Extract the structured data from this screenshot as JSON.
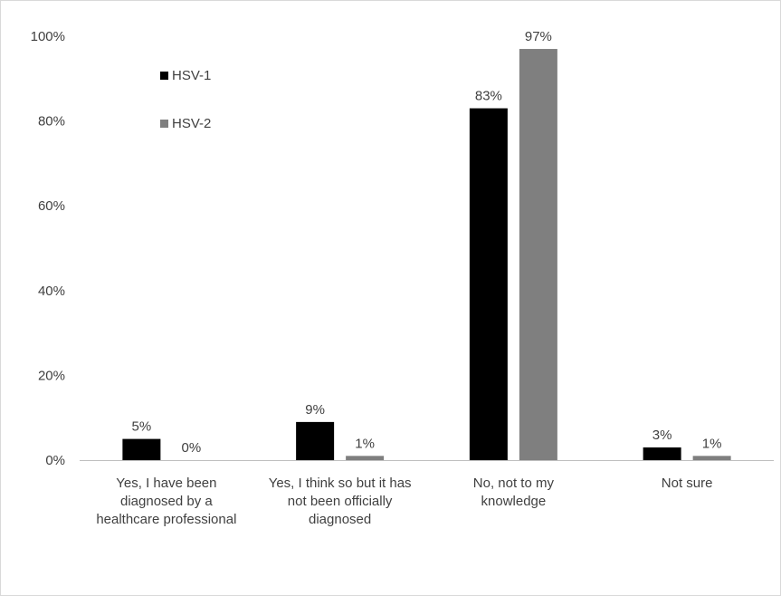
{
  "chart_data": {
    "type": "bar",
    "categories": [
      [
        "Yes, I have been",
        "diagnosed by a",
        "healthcare professional"
      ],
      [
        "Yes, I think so but it has",
        "not been officially",
        "diagnosed"
      ],
      [
        "No, not to my",
        "knowledge"
      ],
      [
        "Not sure"
      ]
    ],
    "series": [
      {
        "name": "HSV-1",
        "color": "#000000",
        "values": [
          5,
          9,
          83,
          3
        ],
        "labels": [
          "5%",
          "9%",
          "83%",
          "3%"
        ]
      },
      {
        "name": "HSV-2",
        "color": "#7f7f7f",
        "values": [
          0,
          1,
          97,
          1
        ],
        "labels": [
          "0%",
          "1%",
          "97%",
          "1%"
        ]
      }
    ],
    "yticks": [
      0,
      20,
      40,
      60,
      80,
      100
    ],
    "ytick_labels": [
      "0%",
      "20%",
      "40%",
      "60%",
      "80%",
      "100%"
    ],
    "ylim": [
      0,
      100
    ],
    "title": "",
    "xlabel": "",
    "ylabel": "",
    "grid": false,
    "legend_position": "top-left"
  }
}
